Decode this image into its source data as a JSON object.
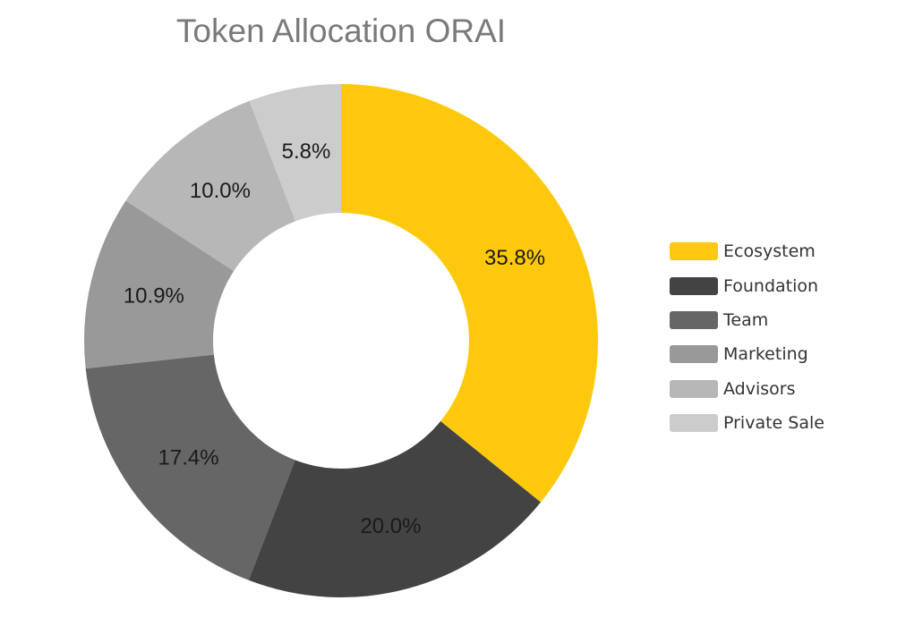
{
  "chart_data": {
    "type": "pie",
    "title": "Token Allocation ORAI",
    "categories": [
      "Ecosystem",
      "Foundation",
      "Team",
      "Marketing",
      "Advisors",
      "Private Sale"
    ],
    "values": [
      35.8,
      20.0,
      17.4,
      10.9,
      10.0,
      5.8
    ],
    "value_labels": [
      "35.8%",
      "20.0%",
      "17.4%",
      "10.9%",
      "10.0%",
      "5.8%"
    ],
    "colors": [
      "#fec90c",
      "#434343",
      "#666666",
      "#999999",
      "#b7b7b7",
      "#cccccc"
    ],
    "donut": true,
    "legend_position": "right"
  }
}
